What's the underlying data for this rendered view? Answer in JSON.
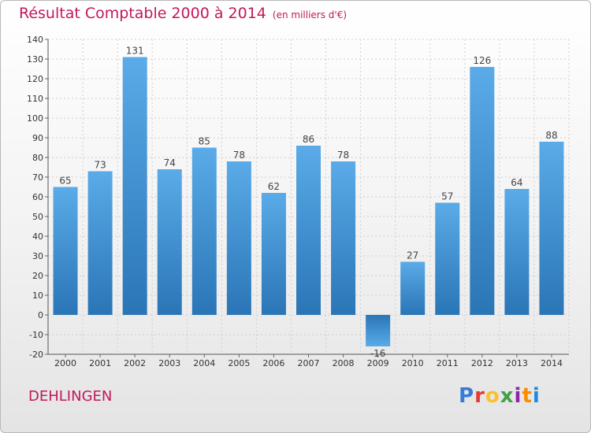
{
  "header": {
    "title": "Résultat Comptable 2000 à 2014",
    "subtitle": "(en milliers d'€)"
  },
  "footer": {
    "commune": "DEHLINGEN",
    "logo_text": "Proxiti",
    "logo_colors": [
      "#3a7bd5",
      "#e53935",
      "#fbc02d",
      "#43a047",
      "#8e24aa",
      "#fb8c00",
      "#1e88e5"
    ]
  },
  "colors": {
    "bar_top": "#5aabe8",
    "bar_bottom": "#2a75b6",
    "negative_top": "#2a75b6",
    "negative_bottom": "#5aabe8",
    "text_accent": "#c2185b"
  },
  "chart_data": {
    "type": "bar",
    "categories": [
      "2000",
      "2001",
      "2002",
      "2003",
      "2004",
      "2005",
      "2006",
      "2007",
      "2008",
      "2009",
      "2010",
      "2011",
      "2012",
      "2013",
      "2014"
    ],
    "values": [
      65,
      73,
      131,
      74,
      85,
      78,
      62,
      86,
      78,
      -16,
      27,
      57,
      126,
      64,
      88
    ],
    "ylim": [
      -20,
      140
    ],
    "yticks": [
      -20,
      -10,
      0,
      10,
      20,
      30,
      40,
      50,
      60,
      70,
      80,
      90,
      100,
      110,
      120,
      130,
      140
    ],
    "grid": true
  }
}
